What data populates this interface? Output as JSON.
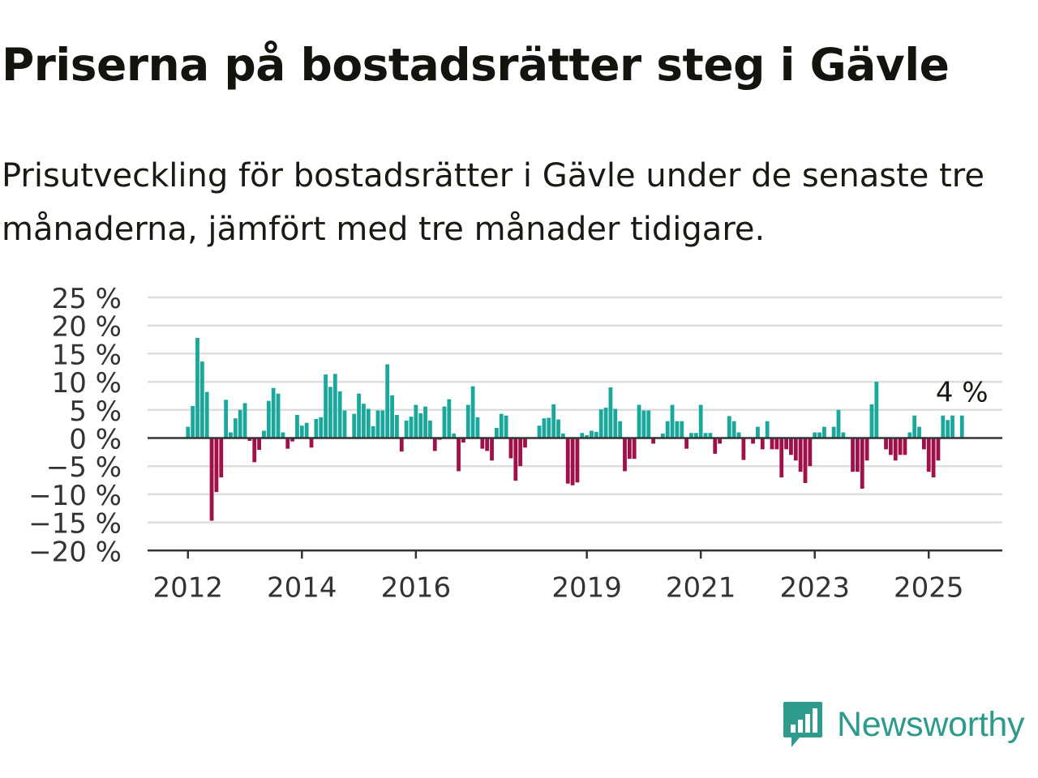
{
  "title": "Priserna på bostadsrätter steg i Gävle",
  "subtitle": "Prisutveckling för bostadsrätter i Gävle under de senaste tre månaderna, jämfört med tre månader tidigare.",
  "brand": {
    "name": "Newsworthy",
    "icon": "newsworthy-logo-icon",
    "color": "#2e9a8c"
  },
  "colors": {
    "positive": "#1aa89c",
    "negative": "#a0114a",
    "grid": "#dddddd",
    "axis": "#333333"
  },
  "chart_data": {
    "type": "bar",
    "title": "",
    "xlabel": "",
    "ylabel": "",
    "ylim": [
      -20,
      25
    ],
    "yticks": [
      25,
      20,
      15,
      10,
      5,
      0,
      -5,
      -10,
      -15,
      -20
    ],
    "ytick_labels": [
      "25 %",
      "20 %",
      "15 %",
      "10 %",
      "5 %",
      "0 %",
      "−5 %",
      "−10 %",
      "−15 %",
      "−20 %"
    ],
    "x_range": [
      "2011-05",
      "2026-05"
    ],
    "xtick_labels": [
      "2012",
      "2014",
      "2016",
      "2019",
      "2021",
      "2023",
      "2025"
    ],
    "xtick_dates": [
      "2012-01",
      "2014-01",
      "2016-01",
      "2019-01",
      "2021-01",
      "2023-01",
      "2025-01"
    ],
    "grid": true,
    "last_value_label": "4 %",
    "months": [
      "2012-01",
      "2012-02",
      "2012-03",
      "2012-04",
      "2012-05",
      "2012-06",
      "2012-07",
      "2012-08",
      "2012-09",
      "2012-10",
      "2012-11",
      "2012-12",
      "2013-01",
      "2013-02",
      "2013-03",
      "2013-04",
      "2013-05",
      "2013-06",
      "2013-07",
      "2013-08",
      "2013-09",
      "2013-10",
      "2013-11",
      "2013-12",
      "2014-01",
      "2014-02",
      "2014-03",
      "2014-04",
      "2014-05",
      "2014-06",
      "2014-07",
      "2014-08",
      "2014-09",
      "2014-10",
      "2014-11",
      "2014-12",
      "2015-01",
      "2015-02",
      "2015-03",
      "2015-04",
      "2015-05",
      "2015-06",
      "2015-07",
      "2015-08",
      "2015-09",
      "2015-10",
      "2015-11",
      "2015-12",
      "2016-01",
      "2016-02",
      "2016-03",
      "2016-04",
      "2016-05",
      "2016-06",
      "2016-07",
      "2016-08",
      "2016-09",
      "2016-10",
      "2016-11",
      "2016-12",
      "2017-01",
      "2017-02",
      "2017-03",
      "2017-04",
      "2017-05",
      "2017-06",
      "2017-07",
      "2017-08",
      "2017-09",
      "2017-10",
      "2017-11",
      "2017-12",
      "2018-01",
      "2018-02",
      "2018-03",
      "2018-04",
      "2018-05",
      "2018-06",
      "2018-07",
      "2018-08",
      "2018-09",
      "2018-10",
      "2018-11",
      "2018-12",
      "2019-01",
      "2019-02",
      "2019-03",
      "2019-04",
      "2019-05",
      "2019-06",
      "2019-07",
      "2019-08",
      "2019-09",
      "2019-10",
      "2019-11",
      "2019-12",
      "2020-01",
      "2020-02",
      "2020-03",
      "2020-04",
      "2020-05",
      "2020-06",
      "2020-07",
      "2020-08",
      "2020-09",
      "2020-10",
      "2020-11",
      "2020-12",
      "2021-01",
      "2021-02",
      "2021-03",
      "2021-04",
      "2021-05",
      "2021-06",
      "2021-07",
      "2021-08",
      "2021-09",
      "2021-10",
      "2021-11",
      "2021-12",
      "2022-01",
      "2022-02",
      "2022-03",
      "2022-04",
      "2022-05",
      "2022-06",
      "2022-07",
      "2022-08",
      "2022-09",
      "2022-10",
      "2022-11",
      "2022-12",
      "2023-01",
      "2023-02",
      "2023-03",
      "2023-04",
      "2023-05",
      "2023-06",
      "2023-07",
      "2023-08",
      "2023-09",
      "2023-10",
      "2023-11",
      "2023-12",
      "2024-01",
      "2024-02",
      "2024-03",
      "2024-04",
      "2024-05",
      "2024-06",
      "2024-07",
      "2024-08",
      "2024-09",
      "2024-10",
      "2024-11",
      "2024-12",
      "2025-01",
      "2025-02",
      "2025-03",
      "2025-04",
      "2025-05",
      "2025-06",
      "2025-07",
      "2025-08"
    ],
    "values": [
      2,
      5.7,
      17.8,
      13.6,
      8.2,
      -14.7,
      -9.6,
      -7,
      6.8,
      1,
      3.5,
      5,
      6.2,
      -0.5,
      -4.3,
      -2.1,
      1.3,
      6.6,
      8.9,
      7.9,
      1,
      -1.9,
      -0.6,
      4.1,
      2.2,
      2.7,
      -1.7,
      3.4,
      3.7,
      11.3,
      9.1,
      11.4,
      8.3,
      4.9,
      0,
      4.3,
      7.9,
      6.1,
      5.2,
      2.1,
      4.9,
      4.9,
      13.1,
      7.6,
      4.1,
      -2.4,
      3.1,
      3.8,
      5.9,
      4.4,
      5.6,
      3.1,
      -2.3,
      -0.3,
      5.6,
      6.9,
      0.8,
      -5.9,
      -0.8,
      5.9,
      9.2,
      3.7,
      -1.9,
      -2.3,
      -4,
      1.8,
      4.3,
      4,
      -3.6,
      -7.6,
      -5,
      -1.7,
      0,
      0,
      2.2,
      3.5,
      3.6,
      6,
      3.3,
      0.8,
      -8.1,
      -8.4,
      -7.9,
      0.9,
      0.5,
      1.3,
      1.1,
      5.1,
      5.4,
      9,
      5.2,
      3,
      -5.9,
      -3.7,
      -3.7,
      5.9,
      4.9,
      4.9,
      -1,
      0,
      0.8,
      3,
      5.9,
      3,
      3,
      -1.9,
      0.9,
      0.9,
      5.9,
      0.9,
      0.9,
      -2.8,
      -1,
      0,
      3.9,
      3,
      1,
      -3.9,
      0,
      -1,
      2,
      -2,
      3,
      -2,
      -2,
      -7,
      -2,
      -3,
      -4,
      -6,
      -8,
      -5,
      1,
      1,
      2,
      0,
      2,
      5,
      1,
      0,
      -6,
      -6,
      -9,
      -4,
      6,
      10,
      0,
      -2,
      -3,
      -4,
      -3,
      -3,
      1,
      4,
      2,
      -2,
      -6,
      -7,
      -4,
      4,
      3.2,
      4,
      0,
      4
    ]
  }
}
